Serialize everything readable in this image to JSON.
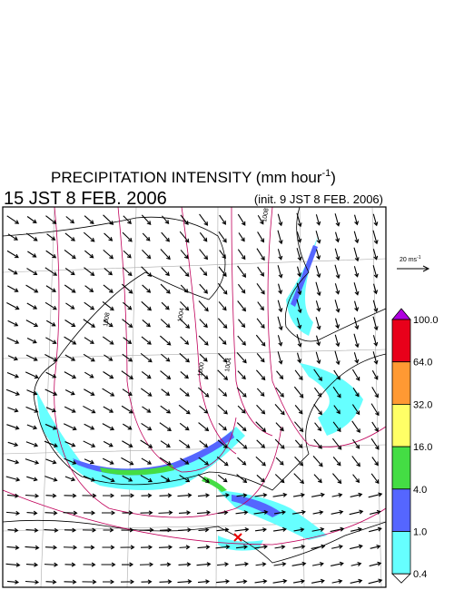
{
  "header": {
    "title": "PRECIPITATION INTENSITY (mm hour",
    "title_exp": "-1",
    "title_end": ")",
    "valid_time": "15 JST 8 FEB. 2006",
    "init_time": "(init. 9 JST 8 FEB. 2006)"
  },
  "vector_legend": {
    "label": "20 ms",
    "exp": "-1"
  },
  "isobars": [
    "1008",
    "1004",
    "1000",
    "1004",
    "1008"
  ],
  "colorbar": {
    "top_color": "#b000e0",
    "bottom_color": "#ffffff",
    "levels": [
      {
        "label": "100.0",
        "color": "#e8001a"
      },
      {
        "label": "64.0",
        "color": "#ff9933"
      },
      {
        "label": "32.0",
        "color": "#ffff66"
      },
      {
        "label": "16.0",
        "color": "#44dd44"
      },
      {
        "label": "4.0",
        "color": "#5566ff"
      },
      {
        "label": "1.0",
        "color": "#66ffff"
      },
      {
        "label": "0.4",
        "color": null
      }
    ]
  }
}
